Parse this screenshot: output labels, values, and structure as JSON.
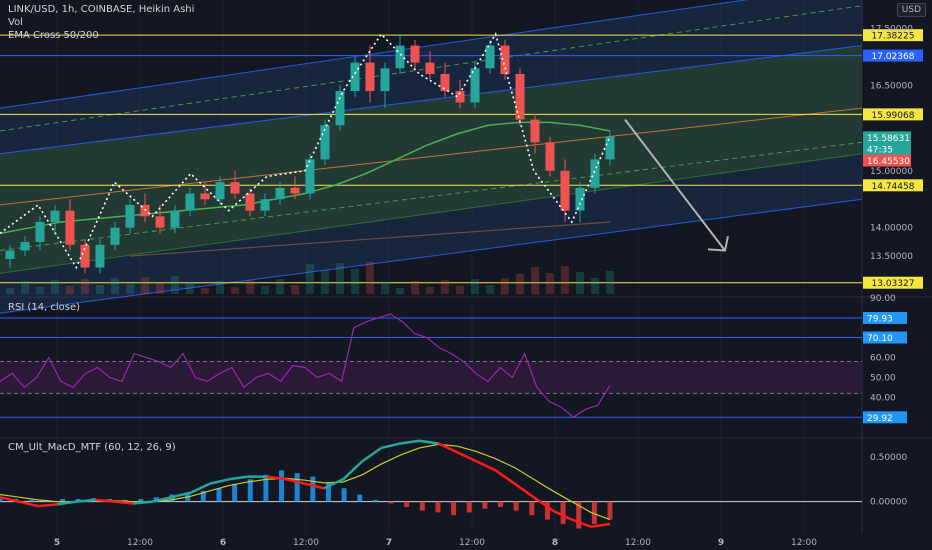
{
  "header": {
    "symbol_line": "LINK/USD, 1h, COINBASE, Heikin Ashi",
    "vol_label": "Vol",
    "ema_label": "EMA Cross 50/200",
    "currency": "USD"
  },
  "chart_data": [
    {
      "type": "candlestick",
      "panel": "price",
      "ylim": [
        12.8,
        18.0
      ],
      "y_ticks": [
        "17.50000",
        "16.50000",
        "15.00000",
        "14.00000",
        "13.50000"
      ],
      "y_tick_values": [
        17.5,
        16.5,
        15.0,
        14.0,
        13.5
      ],
      "horizontal_levels": [
        {
          "label": "17.38225",
          "value": 17.38225,
          "color": "#f5e642"
        },
        {
          "label": "17.02368",
          "value": 17.02368,
          "color": "#2962ff"
        },
        {
          "label": "15.99068",
          "value": 15.99068,
          "color": "#f5e642"
        },
        {
          "label": "14.74458",
          "value": 14.74458,
          "color": "#f5e642"
        },
        {
          "label": "13.03327",
          "value": 13.03327,
          "color": "#f5e642"
        }
      ],
      "price_tags": [
        {
          "label": "15.58631",
          "value": 15.58631,
          "color": "#26a69a"
        },
        {
          "label": "47:35",
          "value": 15.38,
          "color": "#26a69a"
        },
        {
          "label": "16.45530",
          "value": 15.18,
          "color": "#ef5350"
        }
      ],
      "candles_ohlc_approx": [
        [
          13.45,
          13.7,
          13.3,
          13.6
        ],
        [
          13.6,
          13.85,
          13.5,
          13.75
        ],
        [
          13.75,
          14.2,
          13.6,
          14.1
        ],
        [
          14.1,
          14.4,
          13.9,
          14.3
        ],
        [
          14.3,
          14.5,
          13.6,
          13.7
        ],
        [
          13.7,
          13.8,
          13.2,
          13.3
        ],
        [
          13.3,
          13.8,
          13.2,
          13.7
        ],
        [
          13.7,
          14.1,
          13.6,
          14.0
        ],
        [
          14.0,
          14.5,
          13.9,
          14.4
        ],
        [
          14.4,
          14.6,
          14.1,
          14.2
        ],
        [
          14.2,
          14.4,
          13.9,
          14.0
        ],
        [
          14.0,
          14.4,
          13.9,
          14.3
        ],
        [
          14.3,
          14.7,
          14.2,
          14.6
        ],
        [
          14.6,
          14.8,
          14.4,
          14.5
        ],
        [
          14.5,
          14.9,
          14.4,
          14.8
        ],
        [
          14.8,
          15.0,
          14.5,
          14.6
        ],
        [
          14.6,
          14.7,
          14.2,
          14.3
        ],
        [
          14.3,
          14.6,
          14.2,
          14.5
        ],
        [
          14.5,
          14.8,
          14.4,
          14.7
        ],
        [
          14.7,
          14.9,
          14.5,
          14.6
        ],
        [
          14.6,
          15.3,
          14.5,
          15.2
        ],
        [
          15.2,
          15.9,
          15.1,
          15.8
        ],
        [
          15.8,
          16.5,
          15.7,
          16.4
        ],
        [
          16.4,
          17.0,
          16.3,
          16.9
        ],
        [
          16.9,
          17.2,
          16.2,
          16.4
        ],
        [
          16.4,
          16.9,
          16.1,
          16.8
        ],
        [
          16.8,
          17.4,
          16.7,
          17.2
        ],
        [
          17.2,
          17.3,
          16.8,
          16.9
        ],
        [
          16.9,
          17.1,
          16.6,
          16.7
        ],
        [
          16.7,
          16.9,
          16.3,
          16.4
        ],
        [
          16.4,
          16.6,
          16.1,
          16.2
        ],
        [
          16.2,
          16.9,
          16.1,
          16.8
        ],
        [
          16.8,
          17.3,
          16.7,
          17.2
        ],
        [
          17.2,
          17.3,
          16.6,
          16.7
        ],
        [
          16.7,
          16.8,
          15.8,
          15.9
        ],
        [
          15.9,
          16.0,
          15.3,
          15.5
        ],
        [
          15.5,
          15.6,
          14.9,
          15.0
        ],
        [
          15.0,
          15.2,
          14.1,
          14.3
        ],
        [
          14.3,
          14.8,
          14.1,
          14.7
        ],
        [
          14.7,
          15.3,
          14.6,
          15.2
        ],
        [
          15.2,
          15.7,
          15.1,
          15.6
        ]
      ],
      "ema_fast_approx": [
        13.9,
        14.0,
        14.1,
        14.15,
        14.2,
        14.25,
        14.3,
        14.35,
        14.4,
        14.5,
        14.6,
        14.75,
        14.95,
        15.2,
        15.45,
        15.65,
        15.8,
        15.85,
        15.85,
        15.8,
        15.7
      ],
      "ema_slow_approx": [
        13.5,
        13.55,
        13.6,
        13.65,
        13.7,
        13.75,
        13.8,
        13.85,
        13.9,
        13.95,
        14.0,
        14.05,
        14.1
      ],
      "zigzag_approx": [
        13.9,
        14.4,
        13.3,
        14.8,
        14.2,
        14.95,
        14.3,
        14.9,
        15.0,
        16.4,
        17.4,
        16.7,
        16.3,
        17.4,
        15.0,
        14.1,
        15.6
      ],
      "zigzag_line_hint": "white dotted zigzag pattern"
    },
    {
      "type": "line",
      "panel": "rsi",
      "title": "RSI (14, close)",
      "ylim": [
        20,
        90
      ],
      "y_ticks": [
        "90.00",
        "60.00",
        "50.00",
        "40.00"
      ],
      "y_tick_values": [
        90,
        60,
        50,
        40
      ],
      "levels": [
        {
          "label": "79.93",
          "value": 79.93
        },
        {
          "label": "70.10",
          "value": 70.1
        },
        {
          "label": "29.92",
          "value": 29.92
        }
      ],
      "band": [
        42,
        58
      ],
      "values": [
        48,
        52,
        45,
        50,
        60,
        48,
        45,
        52,
        55,
        50,
        48,
        62,
        60,
        58,
        55,
        62,
        50,
        48,
        52,
        55,
        45,
        50,
        52,
        48,
        56,
        55,
        50,
        52,
        48,
        75,
        78,
        80,
        82,
        78,
        72,
        70,
        65,
        62,
        58,
        52,
        48,
        55,
        50,
        62,
        45,
        38,
        35,
        30,
        34,
        36,
        46
      ]
    },
    {
      "type": "line",
      "panel": "macd",
      "title": "CM_Ult_MacD_MTF (60, 12, 26, 9)",
      "ylim": [
        -0.35,
        0.7
      ],
      "y_ticks": [
        "0.50000",
        "0.00000"
      ],
      "y_tick_values": [
        0.5,
        0.0
      ],
      "macd_values": [
        0.05,
        0.0,
        -0.05,
        -0.03,
        0.0,
        0.02,
        0.0,
        -0.02,
        0.0,
        0.05,
        0.1,
        0.2,
        0.25,
        0.28,
        0.28,
        0.25,
        0.2,
        0.15,
        0.25,
        0.45,
        0.6,
        0.65,
        0.68,
        0.65,
        0.55,
        0.45,
        0.35,
        0.2,
        0.05,
        -0.1,
        -0.2,
        -0.28,
        -0.25
      ],
      "signal_values": [
        0.08,
        0.05,
        0.02,
        0.0,
        0.0,
        0.01,
        0.01,
        0.0,
        0.0,
        0.02,
        0.06,
        0.12,
        0.18,
        0.22,
        0.25,
        0.26,
        0.24,
        0.21,
        0.22,
        0.3,
        0.42,
        0.52,
        0.6,
        0.64,
        0.62,
        0.56,
        0.48,
        0.38,
        0.25,
        0.12,
        0.0,
        -0.12,
        -0.2
      ],
      "histogram": [
        0.04,
        0.03,
        0.02,
        0.02,
        0.03,
        0.03,
        0.04,
        0.03,
        0.02,
        0.03,
        0.05,
        0.08,
        0.1,
        0.12,
        0.15,
        0.2,
        0.25,
        0.3,
        0.35,
        0.32,
        0.28,
        0.22,
        0.15,
        0.08,
        0.02,
        -0.02,
        -0.06,
        -0.1,
        -0.12,
        -0.15,
        -0.12,
        -0.08,
        -0.06,
        -0.1,
        -0.15,
        -0.2,
        -0.25,
        -0.3,
        -0.25,
        -0.2
      ]
    }
  ],
  "x_axis": {
    "ticks": [
      "5",
      "12:00",
      "6",
      "12:00",
      "7",
      "12:00",
      "8",
      "12:00",
      "9",
      "12:00"
    ],
    "bold": [
      true,
      false,
      true,
      false,
      true,
      false,
      true,
      false,
      true,
      false
    ]
  },
  "colors": {
    "background": "#131722",
    "up": "#26a69a",
    "down": "#ef5350",
    "channel_blue": "#2962ff",
    "channel_fill": "#1e3a5f",
    "inner_fill": "#2e4a2e",
    "level_yellow": "#f5e642",
    "rsi_line": "#9c27b0",
    "rsi_band": "#311b3d",
    "macd_green": "#26a69a",
    "macd_red": "#ff1a1a",
    "signal_yellow": "#c9c930",
    "ema_fast": "#4caf50",
    "ema_slow": "#6d4c41"
  }
}
